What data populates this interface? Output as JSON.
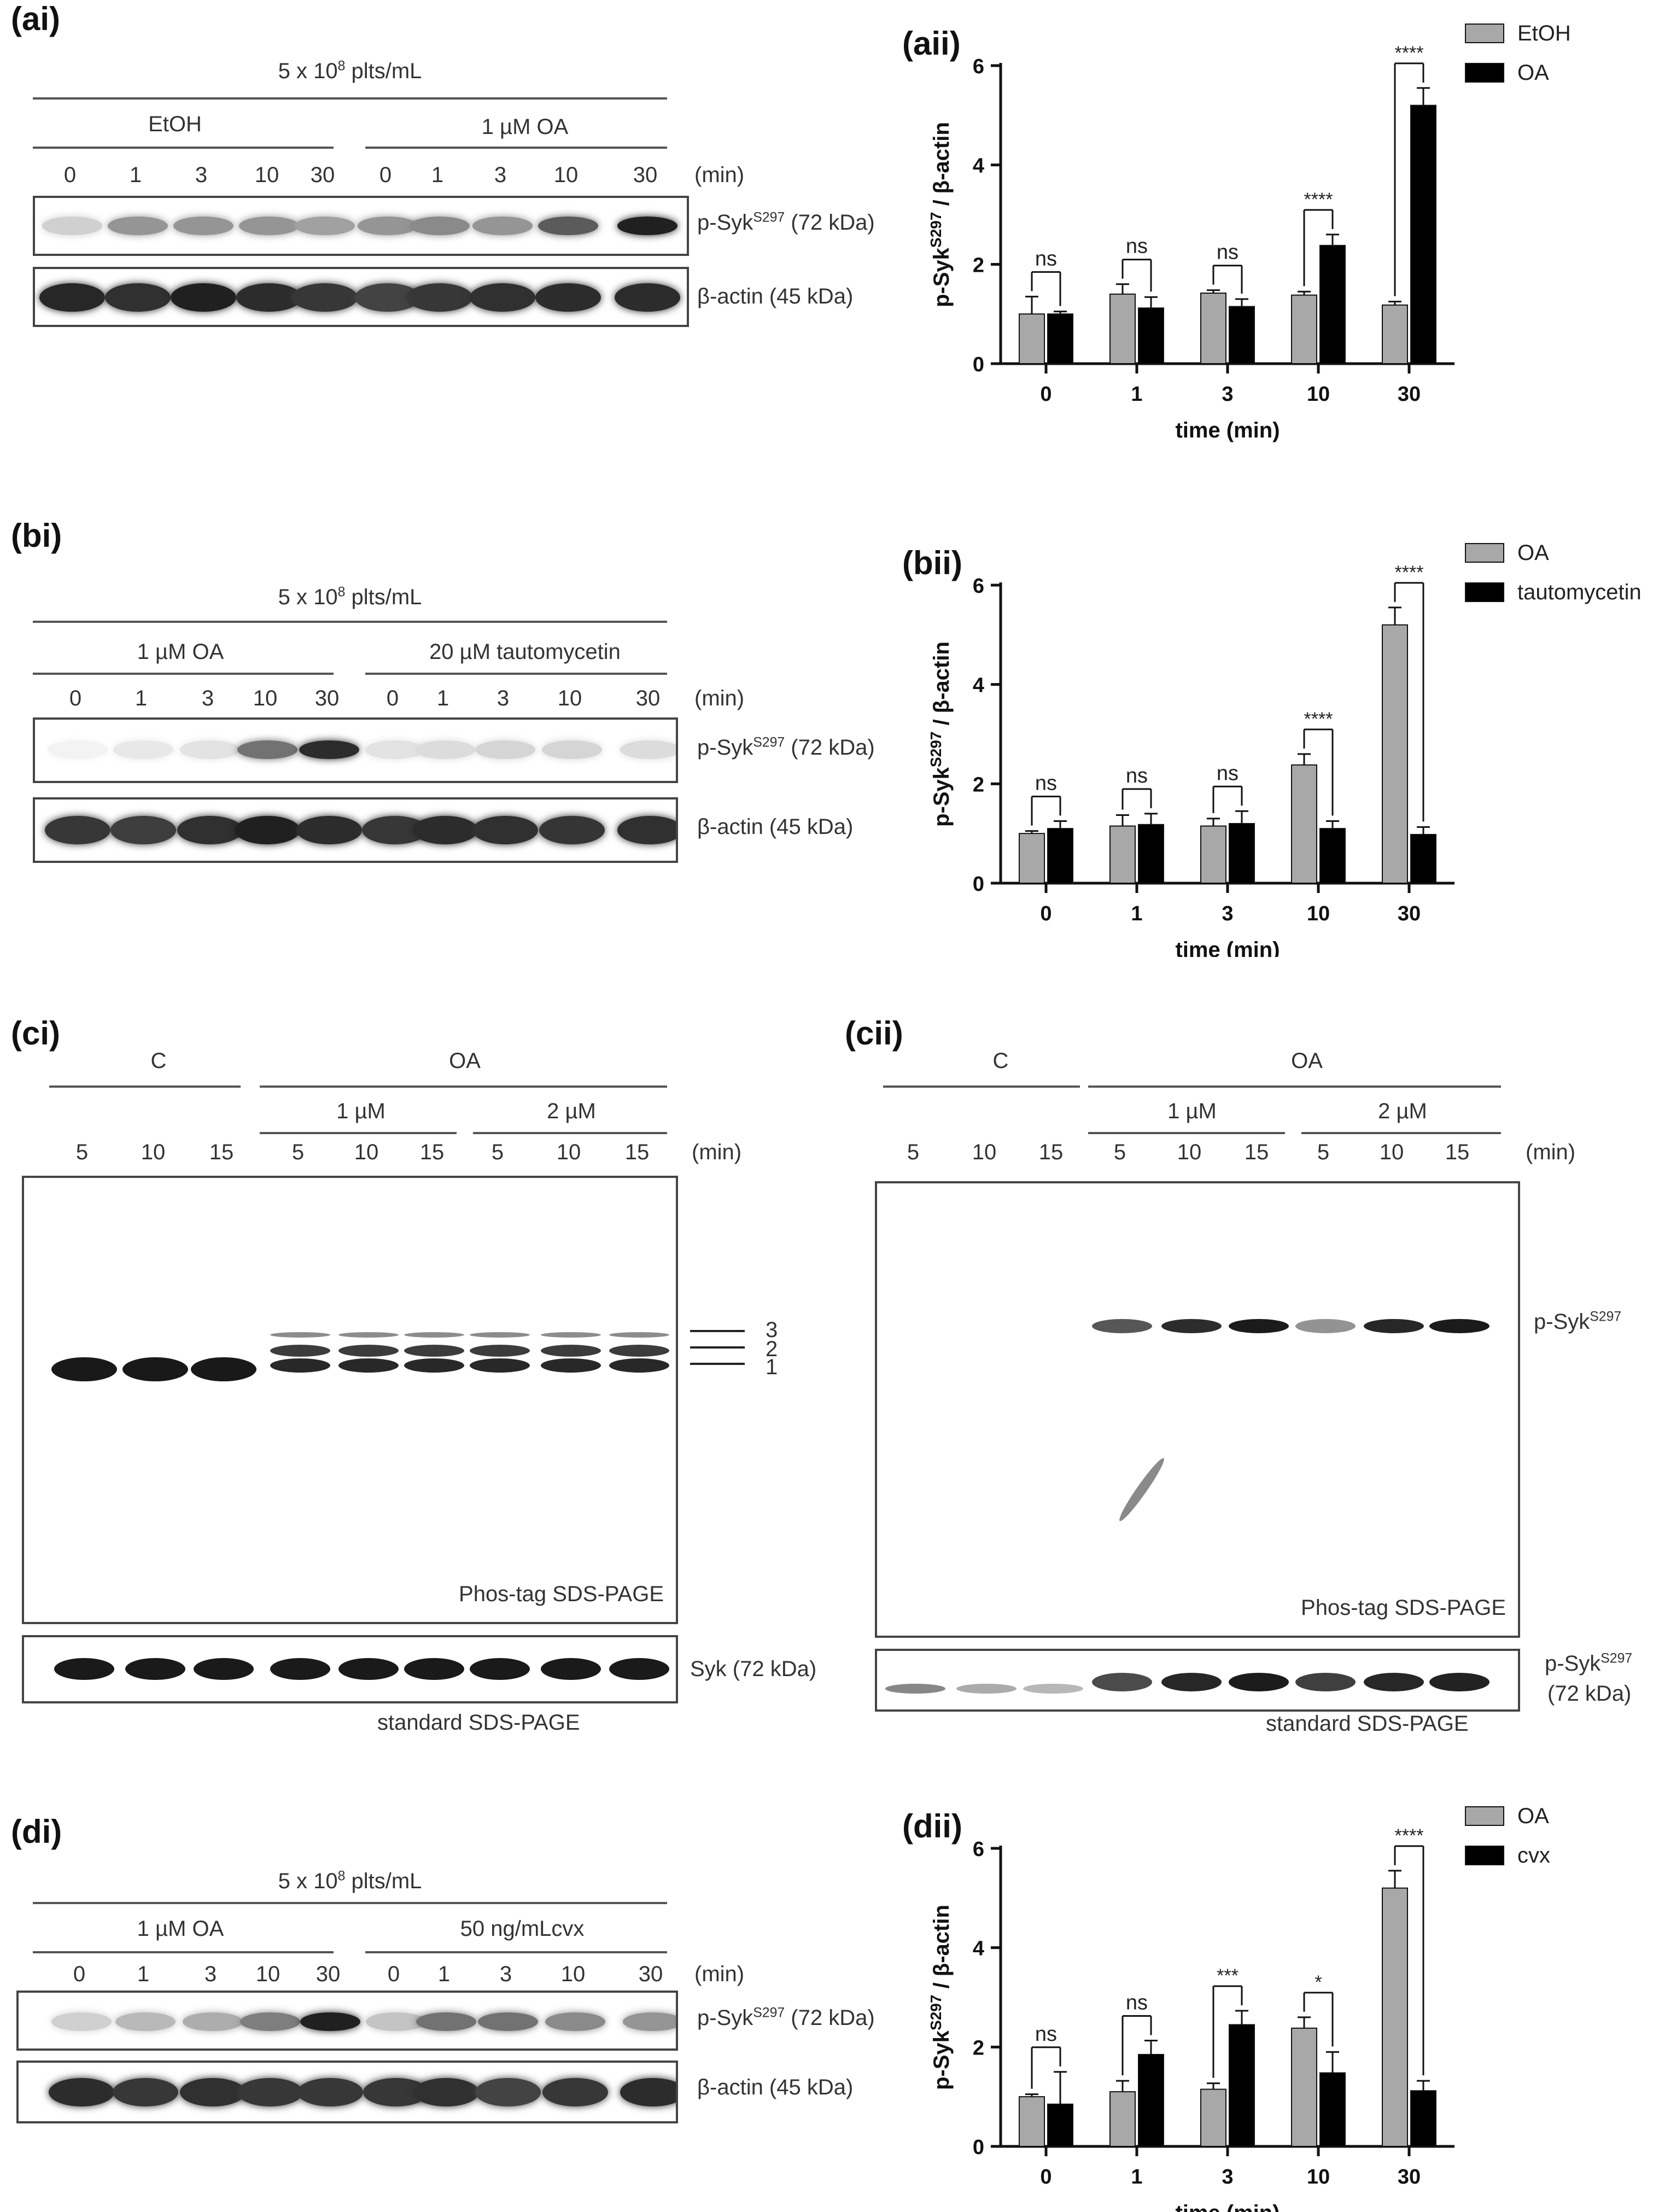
{
  "panels": {
    "ai": {
      "label": "(ai)",
      "density": "5 x 10",
      "density_exp": "8",
      "density_unit": " plts/mL",
      "group1": "EtOH",
      "group2": "1 µM OA",
      "times": [
        "0",
        "1",
        "3",
        "10",
        "30",
        "0",
        "1",
        "3",
        "10",
        "30"
      ],
      "min_label": "(min)",
      "row1_label": "p-Syk",
      "row1_sup": "S297",
      "row1_kda": " (72 kDa)",
      "row2_label": "β-actin (45 kDa)",
      "band_intensity_row1": [
        0.2,
        0.45,
        0.45,
        0.45,
        0.4,
        0.45,
        0.5,
        0.45,
        0.7,
        0.95
      ]
    },
    "bi": {
      "label": "(bi)",
      "density": "5 x 10",
      "density_exp": "8",
      "density_unit": " plts/mL",
      "group1": "1 µM OA",
      "group2": "20 µM tautomycetin",
      "times": [
        "0",
        "1",
        "3",
        "10",
        "30",
        "0",
        "1",
        "3",
        "10",
        "30"
      ],
      "min_label": "(min)",
      "row1_label": "p-Syk",
      "row1_sup": "S297",
      "row1_kda": " (72 kDa)",
      "row2_label": "β-actin (45 kDa)",
      "band_intensity_row1": [
        0.05,
        0.1,
        0.12,
        0.6,
        0.9,
        0.12,
        0.15,
        0.18,
        0.18,
        0.15
      ]
    },
    "ci": {
      "label": "(ci)",
      "group_c": "C",
      "group_oa": "OA",
      "dose1": "1 µM",
      "dose2": "2 µM",
      "times": [
        "5",
        "10",
        "15",
        "5",
        "10",
        "15",
        "5",
        "10",
        "15"
      ],
      "min_label": "(min)",
      "band_markers": [
        "3",
        "2",
        "1"
      ],
      "gel_label": "Phos-tag SDS-PAGE",
      "lower_label": "Syk (72 kDa)",
      "lower_caption": "standard SDS-PAGE"
    },
    "cii": {
      "label": "(cii)",
      "group_c": "C",
      "group_oa": "OA",
      "dose1": "1 µM",
      "dose2": "2 µM",
      "times": [
        "5",
        "10",
        "15",
        "5",
        "10",
        "15",
        "5",
        "10",
        "15"
      ],
      "min_label": "(min)",
      "band_label": "p-Syk",
      "band_sup": "S297",
      "gel_label": "Phos-tag SDS-PAGE",
      "lower_label": "p-Syk",
      "lower_sup": "S297",
      "lower_kda": "(72 kDa)",
      "lower_caption": "standard SDS-PAGE"
    },
    "di": {
      "label": "(di)",
      "density": "5 x 10",
      "density_exp": "8",
      "density_unit": " plts/mL",
      "group1": "1 µM OA",
      "group2": "50 ng/mLcvx",
      "times": [
        "0",
        "1",
        "3",
        "10",
        "30",
        "0",
        "1",
        "3",
        "10",
        "30"
      ],
      "min_label": "(min)",
      "row1_label": "p-Syk",
      "row1_sup": "S297",
      "row1_kda": " (72 kDa)",
      "row2_label": "β-actin (45 kDa)",
      "band_intensity_row1": [
        0.2,
        0.3,
        0.35,
        0.55,
        0.95,
        0.25,
        0.6,
        0.6,
        0.5,
        0.45
      ]
    }
  },
  "chart_data": [
    {
      "id": "aii",
      "label": "(aii)",
      "type": "bar",
      "categories": [
        "0",
        "1",
        "3",
        "10",
        "30"
      ],
      "xlabel": "time (min)",
      "ylabel": "p-SykS297 / β-actin",
      "ylim": [
        0,
        6
      ],
      "yticks": [
        0,
        2,
        4,
        6
      ],
      "series": [
        {
          "name": "EtOH",
          "color": "#a8a8a8",
          "values": [
            1.0,
            1.4,
            1.42,
            1.38,
            1.18
          ],
          "errors": [
            0.35,
            0.2,
            0.06,
            0.07,
            0.07
          ]
        },
        {
          "name": "OA",
          "color": "#000000",
          "values": [
            1.0,
            1.12,
            1.15,
            2.38,
            5.2
          ],
          "errors": [
            0.05,
            0.22,
            0.15,
            0.22,
            0.35
          ]
        }
      ],
      "significance": [
        "ns",
        "ns",
        "ns",
        "****",
        "****"
      ],
      "legend_position": "top-right"
    },
    {
      "id": "bii",
      "label": "(bii)",
      "type": "bar",
      "categories": [
        "0",
        "1",
        "3",
        "10",
        "30"
      ],
      "xlabel": "time (min)",
      "ylabel": "p-SykS297 / β-actin",
      "ylim": [
        0,
        6
      ],
      "yticks": [
        0,
        2,
        4,
        6
      ],
      "series": [
        {
          "name": "OA",
          "color": "#a8a8a8",
          "values": [
            1.0,
            1.15,
            1.15,
            2.38,
            5.2
          ],
          "errors": [
            0.05,
            0.22,
            0.15,
            0.22,
            0.35
          ]
        },
        {
          "name": "tautomycetin",
          "color": "#000000",
          "values": [
            1.1,
            1.18,
            1.2,
            1.1,
            0.98
          ],
          "errors": [
            0.15,
            0.22,
            0.25,
            0.15,
            0.15
          ]
        }
      ],
      "significance": [
        "ns",
        "ns",
        "ns",
        "****",
        "****"
      ],
      "legend_position": "top-right"
    },
    {
      "id": "dii",
      "label": "(dii)",
      "type": "bar",
      "categories": [
        "0",
        "1",
        "3",
        "10",
        "30"
      ],
      "xlabel": "time (min)",
      "ylabel": "p-SykS297 / β-actin",
      "ylim": [
        0,
        6
      ],
      "yticks": [
        0,
        2,
        4,
        6
      ],
      "series": [
        {
          "name": "OA",
          "color": "#a8a8a8",
          "values": [
            1.0,
            1.1,
            1.15,
            2.38,
            5.2
          ],
          "errors": [
            0.05,
            0.22,
            0.12,
            0.22,
            0.35
          ]
        },
        {
          "name": "cvx",
          "color": "#000000",
          "values": [
            0.85,
            1.85,
            2.45,
            1.48,
            1.12
          ],
          "errors": [
            0.65,
            0.28,
            0.28,
            0.42,
            0.2
          ]
        }
      ],
      "significance": [
        "ns",
        "ns",
        "***",
        "*",
        "****"
      ],
      "legend_position": "top-right"
    }
  ]
}
